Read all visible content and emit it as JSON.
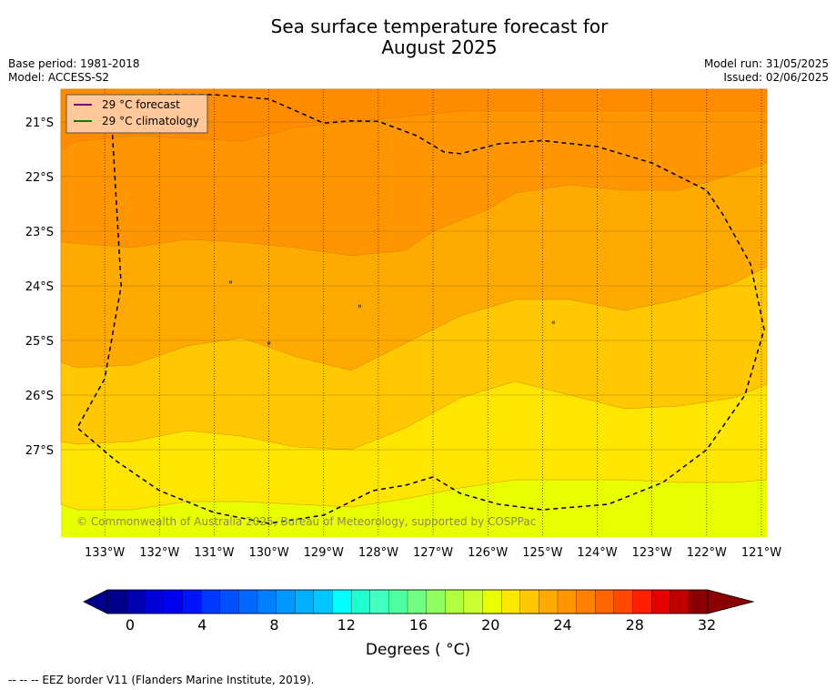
{
  "header": {
    "title_line1": "Sea surface temperature forecast for",
    "title_line2": "August 2025",
    "base_period": "Base period: 1981-2018",
    "model": "Model: ACCESS-S2",
    "model_run": "Model run: 31/05/2025",
    "issued": "Issued: 02/06/2025"
  },
  "chart_data": {
    "type": "heatmap",
    "title": "Sea surface temperature forecast for August 2025",
    "x_ticks": [
      "133°W",
      "132°W",
      "131°W",
      "130°W",
      "129°W",
      "128°W",
      "127°W",
      "126°W",
      "125°W",
      "124°W",
      "123°W",
      "122°W",
      "121°W"
    ],
    "x_values": [
      -133,
      -132,
      -131,
      -130,
      -129,
      -128,
      -127,
      -126,
      -125,
      -124,
      -123,
      -122,
      -121
    ],
    "y_ticks": [
      "21°S",
      "22°S",
      "23°S",
      "24°S",
      "25°S",
      "26°S",
      "27°S"
    ],
    "y_values": [
      -21,
      -22,
      -23,
      -24,
      -25,
      -26,
      -27
    ],
    "xlim": [
      -133.8,
      -120.9
    ],
    "ylim": [
      -28.6,
      -20.4
    ],
    "grid": true,
    "legend": {
      "placement": "top-left",
      "entries": [
        {
          "label": "29 °C  forecast",
          "color": "#800080"
        },
        {
          "label": "29 °C  climatology",
          "color": "#008000"
        }
      ]
    },
    "contour_bands": [
      {
        "range": [
          25,
          26
        ],
        "color": "#ff8c00",
        "boundary_bottom": [
          [
            -133.8,
            -21.5
          ],
          [
            -133.5,
            -21.35
          ],
          [
            -132.5,
            -21.25
          ],
          [
            -131.5,
            -21.3
          ],
          [
            -130.5,
            -21.35
          ],
          [
            -129.5,
            -21.1
          ],
          [
            -128.5,
            -21.0
          ],
          [
            -127.5,
            -20.9
          ],
          [
            -126.5,
            -20.8
          ],
          [
            -125.5,
            -20.8
          ],
          [
            -124.5,
            -20.8
          ],
          [
            -123.5,
            -20.8
          ],
          [
            -122.5,
            -20.8
          ],
          [
            -121.5,
            -20.8
          ],
          [
            -120.9,
            -20.8
          ]
        ]
      },
      {
        "range": [
          24,
          25
        ],
        "color": "#ff9500",
        "boundary_bottom": [
          [
            -133.8,
            -23.2
          ],
          [
            -132.5,
            -23.3
          ],
          [
            -131.5,
            -23.15
          ],
          [
            -130.5,
            -23.2
          ],
          [
            -129.5,
            -23.3
          ],
          [
            -128.5,
            -23.45
          ],
          [
            -127.5,
            -23.35
          ],
          [
            -127,
            -23.0
          ],
          [
            -126,
            -22.6
          ],
          [
            -125.5,
            -22.3
          ],
          [
            -124.5,
            -22.15
          ],
          [
            -123.5,
            -22.25
          ],
          [
            -122.5,
            -22.25
          ],
          [
            -121.5,
            -21.95
          ],
          [
            -120.9,
            -21.75
          ]
        ]
      },
      {
        "range": [
          23,
          24
        ],
        "color": "#ffaa00",
        "boundary_bottom": [
          [
            -133.8,
            -25.4
          ],
          [
            -133.5,
            -25.5
          ],
          [
            -132.5,
            -25.45
          ],
          [
            -131.5,
            -25.1
          ],
          [
            -130.5,
            -24.95
          ],
          [
            -129.5,
            -25.3
          ],
          [
            -128.5,
            -25.55
          ],
          [
            -127.5,
            -25.05
          ],
          [
            -126.5,
            -24.55
          ],
          [
            -125.5,
            -24.25
          ],
          [
            -124.5,
            -24.25
          ],
          [
            -123.5,
            -24.45
          ],
          [
            -122.5,
            -24.25
          ],
          [
            -121.5,
            -23.95
          ],
          [
            -120.9,
            -23.65
          ]
        ]
      },
      {
        "range": [
          22,
          23
        ],
        "color": "#ffc800",
        "boundary_bottom": [
          [
            -133.8,
            -26.85
          ],
          [
            -133.5,
            -26.9
          ],
          [
            -132.5,
            -26.85
          ],
          [
            -131.5,
            -26.65
          ],
          [
            -130.5,
            -26.75
          ],
          [
            -129.5,
            -26.95
          ],
          [
            -128.5,
            -27.0
          ],
          [
            -127.5,
            -26.6
          ],
          [
            -126.5,
            -26.05
          ],
          [
            -125.5,
            -25.75
          ],
          [
            -124.5,
            -26.0
          ],
          [
            -123.5,
            -26.25
          ],
          [
            -122.5,
            -26.2
          ],
          [
            -121.5,
            -26.05
          ],
          [
            -120.9,
            -25.8
          ]
        ]
      },
      {
        "range": [
          21,
          22
        ],
        "color": "#ffe600",
        "boundary_bottom": [
          [
            -133.8,
            -28.0
          ],
          [
            -133.5,
            -28.1
          ],
          [
            -132.5,
            -28.1
          ],
          [
            -131.5,
            -27.95
          ],
          [
            -130.5,
            -27.95
          ],
          [
            -129.5,
            -28.0
          ],
          [
            -128.5,
            -28.05
          ],
          [
            -127.5,
            -27.9
          ],
          [
            -126.5,
            -27.7
          ],
          [
            -125.5,
            -27.55
          ],
          [
            -124.5,
            -27.55
          ],
          [
            -123.5,
            -27.55
          ],
          [
            -122.5,
            -27.6
          ],
          [
            -121.5,
            -27.6
          ],
          [
            -120.9,
            -27.55
          ]
        ]
      },
      {
        "range": [
          20,
          21
        ],
        "color": "#e8ff00",
        "boundary_bottom": [
          [
            -133.8,
            -28.6
          ],
          [
            -120.9,
            -28.6
          ]
        ]
      }
    ],
    "eez_border": [
      [
        -132.9,
        -20.5
      ],
      [
        -132.6,
        -20.6
      ],
      [
        -132.0,
        -20.5
      ],
      [
        -131.0,
        -20.5
      ],
      [
        -130.0,
        -20.58
      ],
      [
        -129.5,
        -20.8
      ],
      [
        -129.0,
        -21.02
      ],
      [
        -128.5,
        -20.98
      ],
      [
        -128.0,
        -20.99
      ],
      [
        -127.3,
        -21.25
      ],
      [
        -126.8,
        -21.55
      ],
      [
        -126.5,
        -21.58
      ],
      [
        -125.8,
        -21.4
      ],
      [
        -125.0,
        -21.34
      ],
      [
        -124.0,
        -21.45
      ],
      [
        -123.0,
        -21.75
      ],
      [
        -122.0,
        -22.25
      ],
      [
        -121.7,
        -22.7
      ],
      [
        -121.2,
        -23.6
      ],
      [
        -120.95,
        -24.8
      ],
      [
        -121.3,
        -26.0
      ],
      [
        -122.0,
        -27.0
      ],
      [
        -122.8,
        -27.6
      ],
      [
        -123.8,
        -28.0
      ],
      [
        -125.0,
        -28.1
      ],
      [
        -125.8,
        -28.0
      ],
      [
        -126.5,
        -27.8
      ],
      [
        -127.0,
        -27.5
      ],
      [
        -127.5,
        -27.65
      ],
      [
        -128.1,
        -27.75
      ],
      [
        -128.6,
        -28.0
      ],
      [
        -129.0,
        -28.2
      ],
      [
        -130.0,
        -28.35
      ],
      [
        -131.0,
        -28.15
      ],
      [
        -132.0,
        -27.75
      ],
      [
        -132.8,
        -27.2
      ],
      [
        -133.5,
        -26.6
      ],
      [
        -133.0,
        -25.7
      ],
      [
        -132.7,
        -24.0
      ],
      [
        -132.9,
        -20.5
      ]
    ],
    "small_features": [
      [
        -130.7,
        -23.93
      ],
      [
        -128.34,
        -24.37
      ],
      [
        -124.8,
        -24.67
      ],
      [
        -130.0,
        -25.05
      ]
    ],
    "watermark": "© Commonwealth of Australia 2025, Bureau of Meteorology, supported by COSPPac",
    "colorbar": {
      "min": 0,
      "max": 32,
      "step": 1,
      "ticks": [
        "0",
        "4",
        "8",
        "12",
        "16",
        "20",
        "24",
        "28",
        "32"
      ],
      "tick_values": [
        0,
        4,
        8,
        12,
        16,
        20,
        24,
        28,
        32
      ],
      "label": "Degrees ( °C)",
      "colors": [
        "#00008b",
        "#0000b0",
        "#0000d8",
        "#0000f0",
        "#0014ff",
        "#0038ff",
        "#0050ff",
        "#0068ff",
        "#0080ff",
        "#0098ff",
        "#00b0ff",
        "#00c8ff",
        "#00ffff",
        "#20ffd0",
        "#40ffc0",
        "#50ffa0",
        "#70ff80",
        "#90ff60",
        "#b0ff40",
        "#c8ff30",
        "#e8ff00",
        "#ffe600",
        "#ffc800",
        "#ffaa00",
        "#ff9500",
        "#ff8000",
        "#ff6400",
        "#ff4800",
        "#ff2000",
        "#e60000",
        "#c00000",
        "#8b0000"
      ],
      "extend_low": "#00008b",
      "extend_high": "#8b0000"
    }
  },
  "footnote": "--  --  -- EEZ border V11 (Flanders Marine Institute, 2019)."
}
